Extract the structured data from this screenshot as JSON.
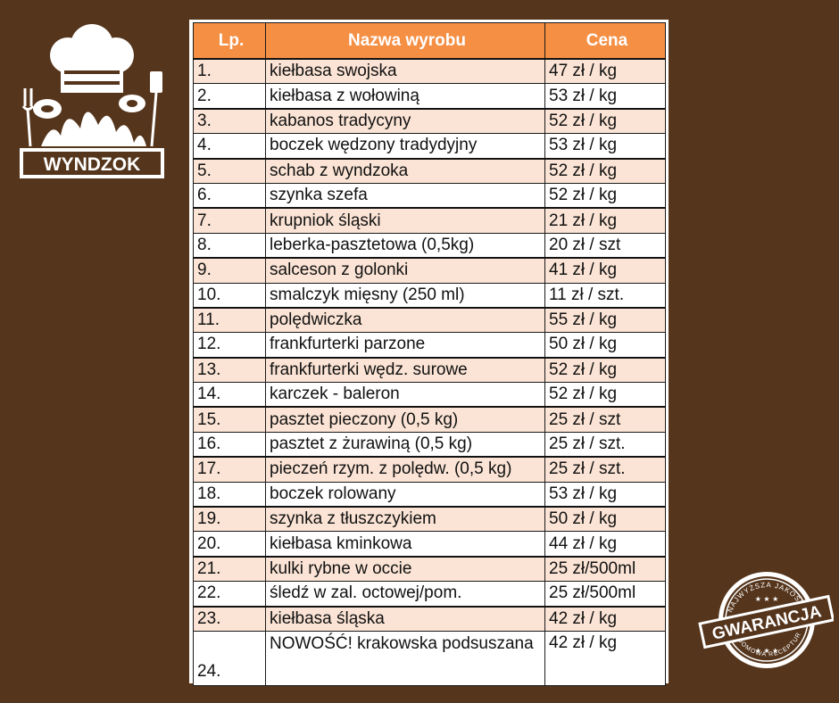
{
  "brand": {
    "name": "WYNDZOK"
  },
  "badge": {
    "title": "GWARANCJA",
    "arc_top": "NAJWYŻSZA JAKOŚĆ",
    "arc_bottom": "DOMOWA RECEPTURA"
  },
  "table": {
    "headers": [
      "Lp.",
      "Nazwa wyrobu",
      "Cena"
    ],
    "rows": [
      {
        "lp": "1.",
        "name": "kiełbasa swojska",
        "price": "47 zł / kg"
      },
      {
        "lp": "2.",
        "name": "kiełbasa z wołowiną",
        "price": "53 zł / kg"
      },
      {
        "lp": "3.",
        "name": "kabanos tradycyny",
        "price": "52 zł / kg"
      },
      {
        "lp": "4.",
        "name": "boczek wędzony tradydyjny",
        "price": "53 zł / kg"
      },
      {
        "lp": "5.",
        "name": "schab z wyndzoka",
        "price": "52 zł / kg"
      },
      {
        "lp": "6.",
        "name": "szynka szefa",
        "price": "52 zł / kg"
      },
      {
        "lp": "7.",
        "name": "krupniok śląski",
        "price": "21 zł / kg"
      },
      {
        "lp": "8.",
        "name": "leberka-pasztetowa (0,5kg)",
        "price": "20 zł / szt"
      },
      {
        "lp": "9.",
        "name": "salceson z golonki",
        "price": "41 zł / kg"
      },
      {
        "lp": "10.",
        "name": "smalczyk mięsny (250 ml)",
        "price": "11 zł / szt."
      },
      {
        "lp": "11.",
        "name": "polędwiczka",
        "price": "55 zł / kg"
      },
      {
        "lp": "12.",
        "name": "frankfurterki parzone",
        "price": "50 zł / kg"
      },
      {
        "lp": "13.",
        "name": "frankfurterki wędz. surowe",
        "price": "52 zł / kg"
      },
      {
        "lp": "14.",
        "name": "karczek - baleron",
        "price": "52 zł / kg"
      },
      {
        "lp": "15.",
        "name": "pasztet pieczony (0,5 kg)",
        "price": "25 zł / szt"
      },
      {
        "lp": "16.",
        "name": "pasztet z żurawiną (0,5 kg)",
        "price": "25 zł / szt."
      },
      {
        "lp": "17.",
        "name": "pieczeń rzym. z polędw. (0,5 kg)",
        "price": "25 zł / szt."
      },
      {
        "lp": "18.",
        "name": "boczek rolowany",
        "price": "53 zł / kg"
      },
      {
        "lp": "19.",
        "name": "szynka z tłuszczykiem",
        "price": "50 zł / kg"
      },
      {
        "lp": "20.",
        "name": "kiełbasa kminkowa",
        "price": "44 zł / kg"
      },
      {
        "lp": "21.",
        "name": "kulki rybne w occie",
        "price": "25 zł/500ml"
      },
      {
        "lp": "22.",
        "name": "śledź w zal. octowej/pom.",
        "price": "25 zł/500ml"
      },
      {
        "lp": "23.",
        "name": "kiełbasa śląska",
        "price": "42 zł / kg"
      },
      {
        "lp": "24.",
        "name": "NOWOŚĆ! krakowska podsuszana",
        "price": "42 zł / kg"
      }
    ]
  },
  "colors": {
    "background": "#55351c",
    "header": "#f58f44",
    "stripe": "#fbe4d5"
  },
  "icons": [
    "chef-hat-icon",
    "grill-fork-icon",
    "grill-spatula-icon",
    "steak-icon",
    "fire-icon",
    "quality-badge-icon"
  ]
}
